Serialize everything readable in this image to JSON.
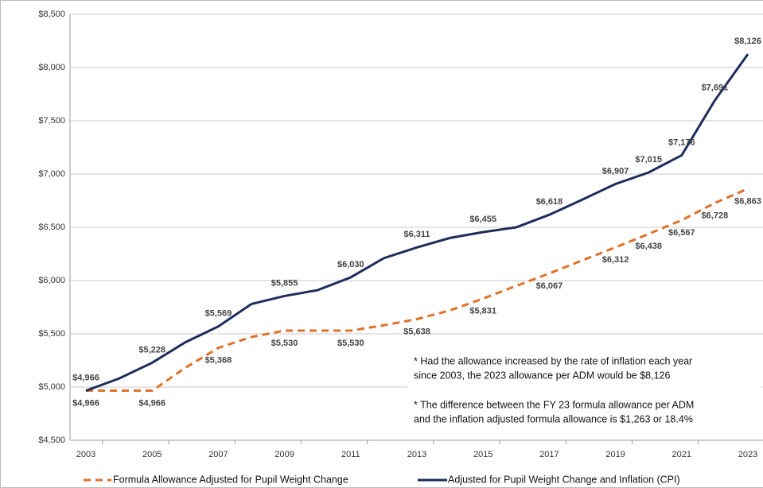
{
  "chart_data": {
    "type": "line",
    "x": [
      2003,
      2004,
      2005,
      2006,
      2007,
      2008,
      2009,
      2010,
      2011,
      2012,
      2013,
      2014,
      2015,
      2016,
      2017,
      2018,
      2019,
      2020,
      2021,
      2022,
      2023
    ],
    "xlim": [
      2002.5,
      2023.5
    ],
    "xticks": [
      2003,
      2005,
      2007,
      2009,
      2011,
      2013,
      2015,
      2017,
      2019,
      2021,
      2023
    ],
    "ylim": [
      4500,
      8500
    ],
    "yticks": [
      {
        "value": 4500,
        "label": "$4,500"
      },
      {
        "value": 5000,
        "label": "$5,000"
      },
      {
        "value": 5500,
        "label": "$5,500"
      },
      {
        "value": 6000,
        "label": "$6,000"
      },
      {
        "value": 6500,
        "label": "$6,500"
      },
      {
        "value": 7000,
        "label": "$7,000"
      },
      {
        "value": 7500,
        "label": "$7,500"
      },
      {
        "value": 8000,
        "label": "$8,000"
      },
      {
        "value": 8500,
        "label": "$8,500"
      }
    ],
    "grid": true,
    "series": [
      {
        "name": "Formula Allowance Adjusted for Pupil Weight Change",
        "color": "#e0702a",
        "dashed": true,
        "values": [
          4966,
          4966,
          4966,
          5180,
          5368,
          5470,
          5530,
          5530,
          5530,
          5580,
          5638,
          5720,
          5831,
          5950,
          6067,
          6190,
          6312,
          6438,
          6567,
          6728,
          6863
        ],
        "value_labels": [
          "$4,966",
          null,
          "$4,966",
          null,
          "$5,368",
          null,
          "$5,530",
          null,
          "$5,530",
          null,
          "$5,638",
          null,
          "$5,831",
          null,
          "$6,067",
          null,
          "$6,312",
          "$6,438",
          "$6,567",
          "$6,728",
          "$6,863"
        ]
      },
      {
        "name": "Adjusted for Pupil Weight Change and Inflation (CPI)",
        "color": "#1f2d5c",
        "dashed": false,
        "values": [
          4966,
          5080,
          5228,
          5420,
          5569,
          5780,
          5855,
          5910,
          6030,
          6210,
          6311,
          6400,
          6455,
          6500,
          6618,
          6760,
          6907,
          7015,
          7176,
          7691,
          8126
        ],
        "value_labels": [
          "$4,966",
          null,
          "$5,228",
          null,
          "$5,569",
          null,
          "$5,855",
          null,
          "$6,030",
          null,
          "$6,311",
          null,
          "$6,455",
          null,
          "$6,618",
          null,
          "$6,907",
          "$7,015",
          "$7,176",
          "$7,691",
          "$8,126"
        ]
      }
    ],
    "annotations": [
      "* Had the allowance increased by the rate of inflation each year",
      "since 2003, the 2023 allowance per ADM would be $8,126",
      "* The difference  between  the FY 23 formula allowance per ADM",
      "and the inflation adjusted formula allowance is $1,263 or 18.4%"
    ]
  }
}
